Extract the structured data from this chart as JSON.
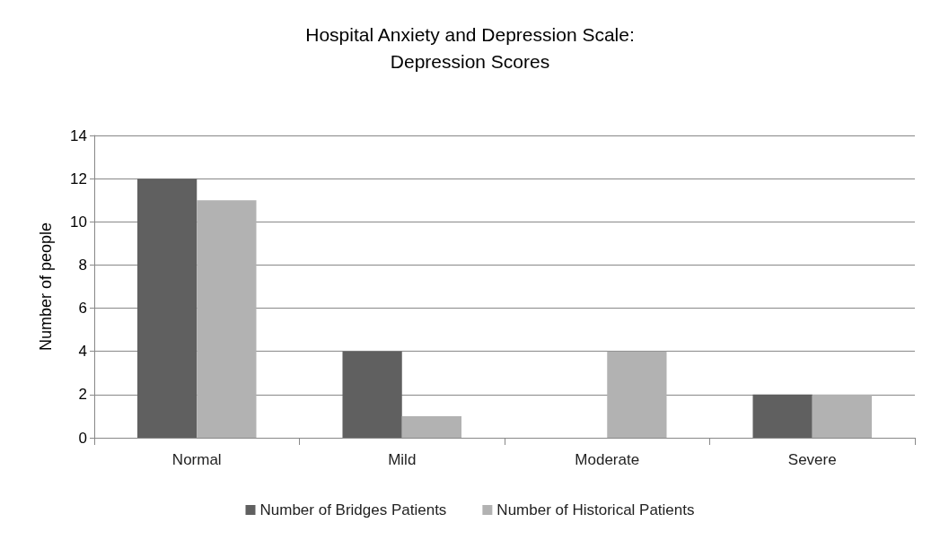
{
  "chart_data": {
    "type": "bar",
    "title": "Hospital Anxiety and Depression Scale:\nDepression Scores",
    "ylabel": "Number of people",
    "categories": [
      "Normal",
      "Mild",
      "Moderate",
      "Severe"
    ],
    "series": [
      {
        "name": "Number of Bridges Patients",
        "color": "#606060",
        "values": [
          12,
          4,
          0,
          2
        ]
      },
      {
        "name": "Number of Historical Patients",
        "color": "#b2b2b2",
        "values": [
          11,
          1,
          4,
          2
        ]
      }
    ],
    "ylim": [
      0,
      14
    ],
    "yticks": [
      0,
      2,
      4,
      6,
      8,
      10,
      12,
      14
    ],
    "grid": "y",
    "legend": "bottom"
  }
}
